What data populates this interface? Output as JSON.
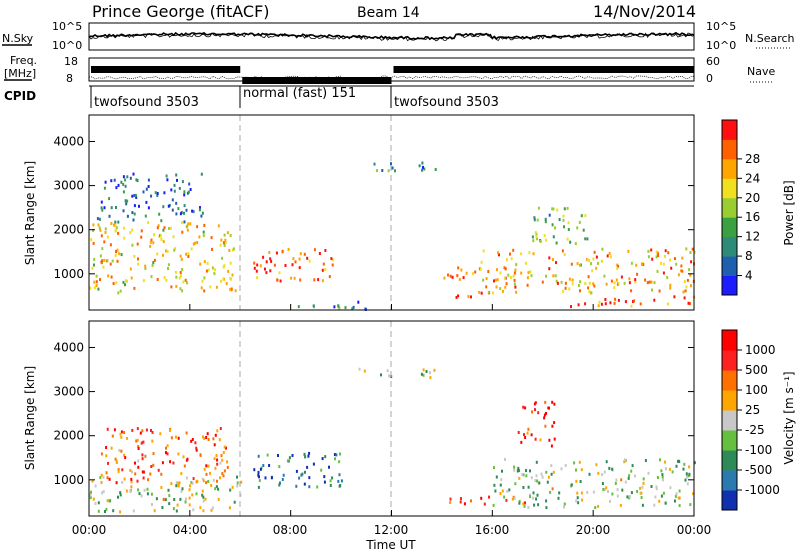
{
  "header": {
    "station": "Prince George (fitACF)",
    "beam": "Beam 14",
    "date": "14/Nov/2014"
  },
  "status_panels": {
    "sky_label": "N.Sky",
    "sky_ticks": [
      "10^5",
      "10^0"
    ],
    "search_label": "N.Search",
    "search_ticks": [
      "10^5",
      "10^0"
    ],
    "freq_label_1": "Freq.",
    "freq_label_2": "[MHz]",
    "freq_ticks": [
      "18",
      "8"
    ],
    "nave_label": "Nave",
    "nave_ticks": [
      "60",
      "0"
    ],
    "cpid_label": "CPID",
    "cpid_segments": [
      {
        "label": "twofsound 3503",
        "start_h": 0,
        "end_h": 6
      },
      {
        "label": "normal (fast) 151",
        "start_h": 6,
        "end_h": 12
      },
      {
        "label": "twofsound 3503",
        "start_h": 12,
        "end_h": 24
      }
    ]
  },
  "time_axis": {
    "ticks": [
      "00:00",
      "04:00",
      "08:00",
      "12:00",
      "16:00",
      "20:00",
      "00:00"
    ],
    "label": "Time UT"
  },
  "chart_data": [
    {
      "type": "heatmap",
      "xlabel": "Time UT",
      "ylabel": "Slant Range [km]",
      "xlim_hours": [
        0,
        24
      ],
      "ylim_km": [
        180,
        4600
      ],
      "yticks": [
        "1000",
        "2000",
        "3000",
        "4000"
      ],
      "colorbar": {
        "label": "Power [dB]",
        "ticks": [
          "4",
          "8",
          "12",
          "16",
          "20",
          "24",
          "28"
        ],
        "colors": [
          "#1c1cff",
          "#1e5fb0",
          "#2e8b7a",
          "#3aa040",
          "#9acd32",
          "#f0e020",
          "#ffa500",
          "#ff6000",
          "#ff1010"
        ]
      },
      "echo_regions": [
        {
          "t0": 0.0,
          "t1": 5.8,
          "r0": 600,
          "r1": 2200,
          "level": 0.65
        },
        {
          "t0": 0.3,
          "t1": 4.5,
          "r0": 2200,
          "r1": 3300,
          "level": 0.2
        },
        {
          "t0": 6.5,
          "t1": 9.8,
          "r0": 850,
          "r1": 1600,
          "level": 0.85
        },
        {
          "t0": 8.0,
          "t1": 11.2,
          "r0": 200,
          "r1": 400,
          "level": 0.25
        },
        {
          "t0": 10.5,
          "t1": 13.8,
          "r0": 3350,
          "r1": 3550,
          "level": 0.3
        },
        {
          "t0": 14.0,
          "t1": 16.5,
          "r0": 900,
          "r1": 1200,
          "level": 0.85
        },
        {
          "t0": 14.5,
          "t1": 16.0,
          "r0": 430,
          "r1": 620,
          "level": 0.85
        },
        {
          "t0": 15.5,
          "t1": 24.0,
          "r0": 600,
          "r1": 1600,
          "level": 0.7
        },
        {
          "t0": 17.5,
          "t1": 19.8,
          "r0": 1700,
          "r1": 2600,
          "level": 0.4
        },
        {
          "t0": 19.0,
          "t1": 24.0,
          "r0": 280,
          "r1": 520,
          "level": 0.85
        }
      ]
    },
    {
      "type": "heatmap",
      "xlabel": "Time UT",
      "ylabel": "Slant Range [km]",
      "xlim_hours": [
        0,
        24
      ],
      "ylim_km": [
        180,
        4600
      ],
      "yticks": [
        "1000",
        "2000",
        "3000",
        "4000"
      ],
      "colorbar": {
        "label": "Velocity [m s⁻¹]",
        "ticks": [
          "1000",
          "500",
          "100",
          "25",
          "-25",
          "-100",
          "-500",
          "-1000"
        ],
        "colors": [
          "#1030b0",
          "#2a7ab0",
          "#2e8b57",
          "#66c040",
          "#c8c8c8",
          "#ffa500",
          "#ff7000",
          "#ff2020",
          "#ff0000"
        ]
      },
      "echo_regions": [
        {
          "t0": 0.0,
          "t1": 6.0,
          "r0": 300,
          "r1": 1100,
          "level": 0.45
        },
        {
          "t0": 0.4,
          "t1": 5.5,
          "r0": 900,
          "r1": 2200,
          "level": 0.75
        },
        {
          "t0": 6.5,
          "t1": 10.0,
          "r0": 850,
          "r1": 1700,
          "level": 0.2
        },
        {
          "t0": 10.5,
          "t1": 13.8,
          "r0": 3350,
          "r1": 3550,
          "level": 0.45
        },
        {
          "t0": 14.0,
          "t1": 17.5,
          "r0": 480,
          "r1": 650,
          "level": 0.8
        },
        {
          "t0": 16.0,
          "t1": 24.0,
          "r0": 400,
          "r1": 1500,
          "level": 0.45
        },
        {
          "t0": 17.0,
          "t1": 18.5,
          "r0": 1800,
          "r1": 2800,
          "level": 0.85
        }
      ]
    }
  ]
}
